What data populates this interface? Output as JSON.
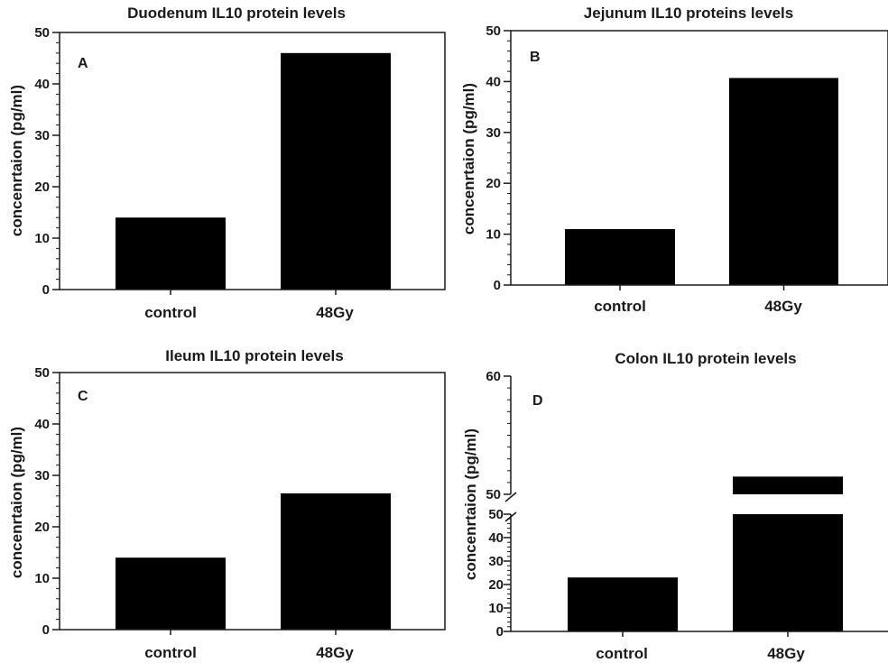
{
  "figure": {
    "background": "#ffffff",
    "bar_color": "#000000",
    "axis_color": "#1a1a1a"
  },
  "chart_data": [
    {
      "type": "bar",
      "panel": "A",
      "title": "Duodenum IL10 protein levels",
      "ylabel": "concenrtaion (pg/ml)",
      "xlabel": "",
      "categories": [
        "control",
        "48Gy"
      ],
      "values": [
        14,
        46
      ],
      "ylim": [
        0,
        50
      ],
      "yticks": [
        0,
        10,
        20,
        30,
        40,
        50
      ],
      "grid": false
    },
    {
      "type": "bar",
      "panel": "B",
      "title": "Jejunum IL10 proteins levels",
      "ylabel": "concenrtaion (pg/ml)",
      "xlabel": "",
      "categories": [
        "control",
        "48Gy"
      ],
      "values": [
        11,
        40.7
      ],
      "ylim": [
        0,
        50
      ],
      "yticks": [
        0,
        10,
        20,
        30,
        40,
        50
      ],
      "grid": false
    },
    {
      "type": "bar",
      "panel": "C",
      "title": "Ileum IL10 protein levels",
      "ylabel": "concenrtaion (pg/ml)",
      "xlabel": "",
      "categories": [
        "control",
        "48Gy"
      ],
      "values": [
        14,
        26.5
      ],
      "ylim": [
        0,
        50
      ],
      "yticks": [
        0,
        10,
        20,
        30,
        40,
        50
      ],
      "grid": false
    },
    {
      "type": "bar",
      "panel": "D",
      "title": "Colon IL10 protein levels",
      "ylabel": "concenrtaion (pg/ml)",
      "xlabel": "",
      "categories": [
        "control",
        "48Gy"
      ],
      "values": [
        23,
        51.5
      ],
      "ylim": [
        0,
        60
      ],
      "axis_break": [
        50,
        50
      ],
      "yticks_lower": [
        0,
        10,
        20,
        30,
        40,
        50
      ],
      "yticks_upper": [
        50,
        60
      ],
      "grid": false
    }
  ]
}
